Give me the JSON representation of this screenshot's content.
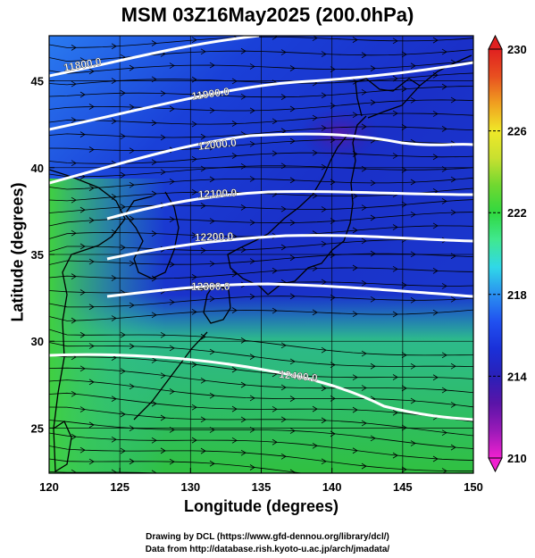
{
  "title": "MSM 03Z16May2025 (200.0hPa)",
  "x_axis": {
    "label": "Longitude (degrees)",
    "range": [
      120,
      150
    ],
    "ticks": [
      120,
      125,
      130,
      135,
      140,
      145,
      150
    ]
  },
  "y_axis": {
    "label": "Latitude  (degrees)",
    "range": [
      22.4,
      47.6
    ],
    "ticks": [
      25,
      30,
      35,
      40,
      45
    ]
  },
  "colorbar": {
    "range": [
      210,
      230
    ],
    "ticks": [
      210,
      214,
      218,
      222,
      226,
      230
    ],
    "unit": "",
    "colors": [
      "#f020d0",
      "#9a1ab8",
      "#5a14a8",
      "#2a20b8",
      "#1a30d8",
      "#2050f0",
      "#2a90f0",
      "#30d8e8",
      "#40e890",
      "#30d840",
      "#70d830",
      "#c8e030",
      "#f0e828",
      "#f0a020",
      "#e85020",
      "#e02020"
    ]
  },
  "contours": [
    {
      "label": "11800.0",
      "value": 11800
    },
    {
      "label": "11900.0",
      "value": 11900
    },
    {
      "label": "12000.0",
      "value": 12000
    },
    {
      "label": "12100.0",
      "value": 12100
    },
    {
      "label": "12200.0",
      "value": 12200
    },
    {
      "label": "12300.0",
      "value": 12300
    },
    {
      "label": "12400.0",
      "value": 12400
    }
  ],
  "credits": {
    "line1": "Drawing by DCL (https://www.gfd-dennou.org/library/dcl/)",
    "line2": "Data from http://database.rish.kyoto-u.ac.jp/arch/jmadata/"
  }
}
